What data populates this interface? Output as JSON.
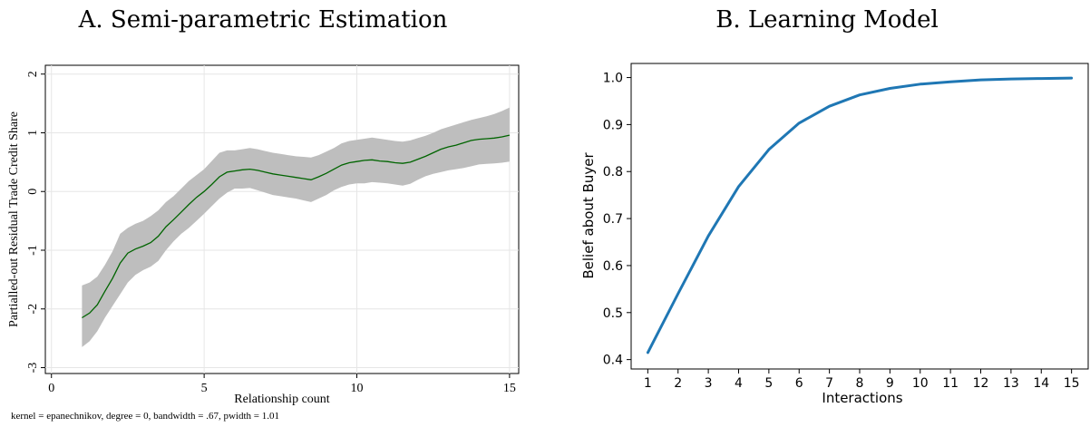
{
  "chart_data": [
    {
      "type": "area",
      "title": "A. Semi-parametric Estimation",
      "xlabel": "Relationship count",
      "ylabel": "Partialled-out Residual Trade Credit Share",
      "note": "kernel = epanechnikov, degree = 0, bandwidth = .67, pwidth = 1.01",
      "xlim": [
        -0.2,
        15.3
      ],
      "ylim": [
        -3.1,
        2.15
      ],
      "grid": true,
      "x_ticks": [
        0,
        5,
        10,
        15
      ],
      "y_ticks": [
        -3,
        -2,
        -1,
        0,
        1,
        2
      ],
      "x_tick_labels": [
        "0",
        "5",
        "10",
        "15"
      ],
      "y_tick_labels": [
        "-3",
        "-2",
        "-1",
        "0",
        "1",
        "2"
      ],
      "colors": {
        "line": "#006400",
        "band": "#bebebe",
        "grid": "#e6e6e6"
      },
      "series": [
        {
          "x": [
            1,
            1.25,
            1.5,
            1.75,
            2,
            2.25,
            2.5,
            2.75,
            3,
            3.25,
            3.5,
            3.75,
            4,
            4.25,
            4.5,
            4.75,
            5,
            5.25,
            5.5,
            5.75,
            6,
            6.25,
            6.5,
            6.75,
            7,
            7.25,
            7.5,
            7.75,
            8,
            8.25,
            8.5,
            8.75,
            9,
            9.25,
            9.5,
            9.75,
            10,
            10.25,
            10.5,
            10.75,
            11,
            11.25,
            11.5,
            11.75,
            12,
            12.25,
            12.5,
            12.75,
            13,
            13.25,
            13.5,
            13.75,
            14,
            14.25,
            14.5,
            14.75,
            15
          ],
          "y": [
            -2.15,
            -2.07,
            -1.93,
            -1.7,
            -1.48,
            -1.22,
            -1.05,
            -0.98,
            -0.93,
            -0.87,
            -0.76,
            -0.6,
            -0.48,
            -0.35,
            -0.22,
            -0.1,
            0.0,
            0.12,
            0.25,
            0.33,
            0.35,
            0.37,
            0.38,
            0.36,
            0.33,
            0.3,
            0.28,
            0.26,
            0.24,
            0.22,
            0.2,
            0.25,
            0.31,
            0.38,
            0.45,
            0.49,
            0.51,
            0.53,
            0.54,
            0.52,
            0.51,
            0.49,
            0.48,
            0.5,
            0.55,
            0.6,
            0.66,
            0.72,
            0.76,
            0.79,
            0.83,
            0.87,
            0.89,
            0.9,
            0.91,
            0.93,
            0.96
          ],
          "lower": [
            -2.65,
            -2.55,
            -2.38,
            -2.15,
            -1.95,
            -1.75,
            -1.55,
            -1.42,
            -1.34,
            -1.28,
            -1.18,
            -1.0,
            -0.85,
            -0.72,
            -0.62,
            -0.5,
            -0.38,
            -0.25,
            -0.12,
            -0.02,
            0.05,
            0.05,
            0.06,
            0.02,
            -0.02,
            -0.06,
            -0.08,
            -0.1,
            -0.12,
            -0.15,
            -0.18,
            -0.12,
            -0.06,
            0.02,
            0.08,
            0.12,
            0.14,
            0.14,
            0.16,
            0.15,
            0.14,
            0.12,
            0.1,
            0.13,
            0.2,
            0.26,
            0.3,
            0.33,
            0.36,
            0.38,
            0.4,
            0.43,
            0.46,
            0.47,
            0.48,
            0.49,
            0.51
          ],
          "upper": [
            -1.6,
            -1.55,
            -1.45,
            -1.25,
            -1.02,
            -0.72,
            -0.62,
            -0.55,
            -0.5,
            -0.42,
            -0.32,
            -0.18,
            -0.08,
            0.05,
            0.18,
            0.28,
            0.38,
            0.52,
            0.66,
            0.7,
            0.7,
            0.72,
            0.74,
            0.72,
            0.69,
            0.66,
            0.64,
            0.62,
            0.6,
            0.59,
            0.58,
            0.62,
            0.68,
            0.74,
            0.82,
            0.86,
            0.88,
            0.9,
            0.92,
            0.9,
            0.88,
            0.86,
            0.85,
            0.87,
            0.91,
            0.95,
            1.0,
            1.06,
            1.1,
            1.14,
            1.18,
            1.22,
            1.25,
            1.28,
            1.32,
            1.37,
            1.43
          ]
        }
      ]
    },
    {
      "type": "line",
      "title": "B. Learning Model",
      "xlabel": "Interactions",
      "ylabel": "Belief about Buyer",
      "xlim": [
        0.45,
        15.55
      ],
      "ylim": [
        0.38,
        1.03
      ],
      "grid": false,
      "x_ticks": [
        1,
        2,
        3,
        4,
        5,
        6,
        7,
        8,
        9,
        10,
        11,
        12,
        13,
        14,
        15
      ],
      "y_ticks": [
        0.4,
        0.5,
        0.6,
        0.7,
        0.8,
        0.9,
        1.0
      ],
      "x_tick_labels": [
        "1",
        "2",
        "3",
        "4",
        "5",
        "6",
        "7",
        "8",
        "9",
        "10",
        "11",
        "12",
        "13",
        "14",
        "15"
      ],
      "y_tick_labels": [
        "0.4",
        "0.5",
        "0.6",
        "0.7",
        "0.8",
        "0.9",
        "1.0"
      ],
      "colors": {
        "line": "#1f77b4"
      },
      "series": [
        {
          "x": [
            1,
            2,
            3,
            4,
            5,
            6,
            7,
            8,
            9,
            10,
            11,
            12,
            13,
            14,
            15
          ],
          "y": [
            0.415,
            0.54,
            0.663,
            0.768,
            0.847,
            0.903,
            0.939,
            0.963,
            0.977,
            0.986,
            0.991,
            0.995,
            0.997,
            0.998,
            0.999
          ]
        }
      ]
    }
  ]
}
